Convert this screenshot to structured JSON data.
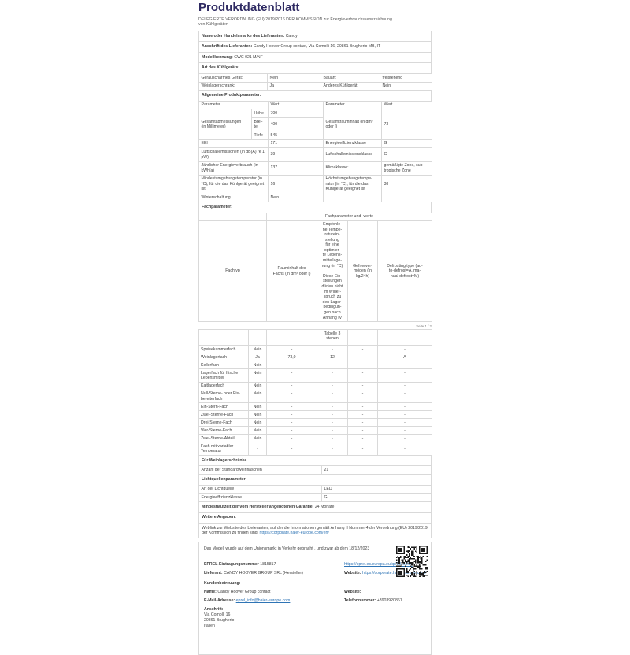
{
  "title": "Produktdatenblatt",
  "subtitle": "DELEGIERTE VERORDNUNG (EU) 2019/2016 DER KOMMISSION zur Energieverbrauchskennzeichnung von Kühlgeräten",
  "supplier": {
    "name_label": "Name oder Handelsmarke des Lieferanten:",
    "name_value": "Candy",
    "address_label": "Anschrift des Lieferanten:",
    "address_value": "Candy Hoover Group contact, Via Comolli 16, 20861 Brugherio MB, IT",
    "model_label": "Modellkennung:",
    "model_value": "CWC 021 M/NF"
  },
  "type_section": {
    "header": "Art des Kühlgeräts:",
    "rows": [
      {
        "c1": "Geräuscharmes Gerät:",
        "c2": "Nein",
        "c3": "Bauart:",
        "c4": "freistehend"
      },
      {
        "c1": "Weinlagerschrank:",
        "c2": "Ja",
        "c3": "Anderes Kühlgerät:",
        "c4": "Nein"
      }
    ]
  },
  "general": {
    "header": "Allgemeine Produktparameter:",
    "col_param": "Parameter",
    "col_wert": "Wert",
    "dims_label": "Gesamtabmessungen\n(in Millimeter)",
    "dims": [
      {
        "k": "Höhe",
        "v": "700"
      },
      {
        "k": "Brei-\nte",
        "v": "400"
      },
      {
        "k": "Tiefe",
        "v": "545"
      }
    ],
    "dims_right_label": "Gesamtrauminhalt (in dm³ oder l)",
    "dims_right_value": "73",
    "rows": [
      {
        "p1": "EEI",
        "v1": "171",
        "p2": "Energieeffizienzklasse",
        "v2": "G"
      },
      {
        "p1": "Luftschallemissionen (in dB(A) re 1 pW)",
        "v1": "39",
        "p2": "Luftschallemissionsklasse",
        "v2": "C"
      },
      {
        "p1": "Jährlicher Energieverbrauch (in kWh/a)",
        "v1": "137",
        "p2": "Klimaklasse:",
        "v2": "gemäßigte Zone, sub-\ntropische Zone"
      },
      {
        "p1": "Mindestumgebungstemperatur (in °C), für die das Kühlgerät geeignet ist",
        "v1": "16",
        "p2": "Höchstumgebungstempe-\nratur (in °C), für die das\nKühlgerät geeignet ist",
        "v2": "38"
      },
      {
        "p1": "Winterschaltung",
        "v1": "Nein",
        "p2": "",
        "v2": ""
      }
    ]
  },
  "fach": {
    "header": "Fachparameter:",
    "band_title": "Fachparameter und -werte",
    "col_fachtyp": "Fachtyp",
    "col_rauminhalt": "Rauminhalt des\nFachs (in dm³ oder l)",
    "col_temp": "Empfohle-\nne Tempe-\nraturein-\nstellung\nfür eine\noptimier-\nte Lebens-\nmittellage-\nrung (in °C)\n\nDiese Ein-\nstellungen\ndürfen nicht\nim Wider-\nspruch zu\nden Lager-\nbedingun-\ngen nach\nAnhang IV",
    "col_temp_cont": "Tabelle 3\nstehen",
    "col_gefrier": "Gefrierver-\nmögen (in\nkg/24h)",
    "col_defrost": "Defrosting type (au-\nto-defrost=A, ma-\nnual defrost=M)",
    "page_footer": "Seite 1 / 2",
    "rows": [
      {
        "name": "Speisekammerfach",
        "present": "Nein",
        "vol": "-",
        "temp": "-",
        "freeze": "-",
        "defrost": "-"
      },
      {
        "name": "Weinlagerfach",
        "present": "Ja",
        "vol": "73,0",
        "temp": "12",
        "freeze": "-",
        "defrost": "A"
      },
      {
        "name": "Kellerfach",
        "present": "Nein",
        "vol": "-",
        "temp": "-",
        "freeze": "-",
        "defrost": "-"
      },
      {
        "name": "Lagerfach für frische\nLebensmittel",
        "present": "Nein",
        "vol": "-",
        "temp": "-",
        "freeze": "-",
        "defrost": "-"
      },
      {
        "name": "Kaltlagerfach",
        "present": "Nein",
        "vol": "-",
        "temp": "-",
        "freeze": "-",
        "defrost": "-"
      },
      {
        "name": "Null-Sterne- oder Eis-\nbereiterfach",
        "present": "Nein",
        "vol": "-",
        "temp": "-",
        "freeze": "-",
        "defrost": "-"
      },
      {
        "name": "Ein-Stern-Fach",
        "present": "Nein",
        "vol": "-",
        "temp": "-",
        "freeze": "-",
        "defrost": "-"
      },
      {
        "name": "Zwei-Sterne-Fach",
        "present": "Nein",
        "vol": "-",
        "temp": "-",
        "freeze": "-",
        "defrost": "-"
      },
      {
        "name": "Drei-Sterne-Fach",
        "present": "Nein",
        "vol": "-",
        "temp": "-",
        "freeze": "-",
        "defrost": "-"
      },
      {
        "name": "Vier-Sterne-Fach",
        "present": "Nein",
        "vol": "-",
        "temp": "-",
        "freeze": "-",
        "defrost": "-"
      },
      {
        "name": "Zwei-Sterne-Abteil",
        "present": "Nein",
        "vol": "-",
        "temp": "-",
        "freeze": "-",
        "defrost": "-"
      },
      {
        "name": "Fach mit variabler\nTemperatur",
        "present": "-",
        "vol": "-",
        "temp": "-",
        "freeze": "-",
        "defrost": "-"
      }
    ]
  },
  "wine": {
    "header": "Für Weinlagerschränke",
    "label": "Anzahl der Standardweinflaschen",
    "value": "21"
  },
  "light": {
    "header": "Lichtquellenparameter:",
    "rows": [
      {
        "label": "Art der Lichtquelle",
        "value": "LED"
      },
      {
        "label": "Energieeffizienzklasse",
        "value": "G"
      }
    ]
  },
  "guarantee": {
    "label": "Mindestlaufzeit der vom Hersteller angebotenen Garantie:",
    "value": "24 Monate"
  },
  "additional": {
    "header": "Weitere Angaben:",
    "weblink_text": "Weblink zur Website des Lieferanten, auf der die Informationen gemäß Anhang II Nummer 4 der Verordnung (EU) 2019/2019 der Kommission zu finden sind:",
    "weblink_url": "https://corporate.haier-europe.com/en/"
  },
  "market": {
    "text": "Das Modell wurde auf dem Unionsmarkt in Verkehr gebracht , und zwar ab dem 18/12/2023"
  },
  "footer": {
    "eprel_label": "EPREL-Eintragungsnummer",
    "eprel_value": "1815817",
    "eprel_link": "https://eprel.ec.europa.eu/qr/1815817",
    "supplier_label": "Lieferant:",
    "supplier_value": "CANDY HOOVER GROUP SRL (Hersteller)",
    "website_label": "Website:",
    "website_link": "https://corporate.haier-europe.com/",
    "care_header": "Kundenbetreuung:",
    "name_label": "Name:",
    "name_value": "Candy Hoover Group contact",
    "website2_label": "Website:",
    "email_label": "E-Mail-Adresse:",
    "email_value": "eprel_info@haier-europe.com",
    "phone_label": "Telefonnummer:",
    "phone_value": "+3903920861",
    "address_label": "Anschrift:",
    "address_lines": "Via Comolli 16\n20861 Brugherio\nItalien"
  },
  "colors": {
    "title": "#2e2a62",
    "link": "#2e74b5",
    "border": "#d9d9d9",
    "text": "#3f3f3f",
    "qr": "#1a1a1a"
  }
}
